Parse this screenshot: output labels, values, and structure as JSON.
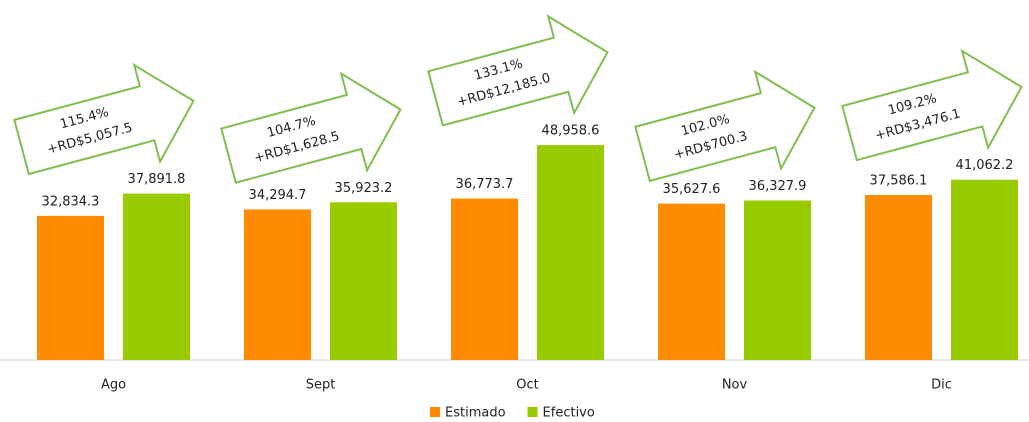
{
  "chart_data": {
    "type": "bar",
    "categories": [
      "Ago",
      "Sept",
      "Oct",
      "Nov",
      "Dic"
    ],
    "series": [
      {
        "name": "Estimado",
        "color": "#ff8c00",
        "values": [
          32834.3,
          34294.7,
          36773.7,
          35627.6,
          37586.1
        ],
        "value_labels": [
          "32,834.3",
          "34,294.7",
          "36,773.7",
          "35,627.6",
          "37,586.1"
        ]
      },
      {
        "name": "Efectivo",
        "color": "#99cc00",
        "values": [
          37891.8,
          35923.2,
          48958.6,
          36327.9,
          41062.2
        ],
        "value_labels": [
          "37,891.8",
          "35,923.2",
          "48,958.6",
          "36,327.9",
          "41,062.2"
        ]
      }
    ],
    "annotations": [
      {
        "percent": "115.4%",
        "amount": "+RD$5,057.5"
      },
      {
        "percent": "104.7%",
        "amount": "+RD$1,628.5"
      },
      {
        "percent": "133.1%",
        "amount": "+RD$12,185.0"
      },
      {
        "percent": "102.0%",
        "amount": "+RD$700.3"
      },
      {
        "percent": "109.2%",
        "amount": "+RD$3,476.1"
      }
    ],
    "ylim": [
      0,
      82000
    ],
    "legend": "bottom"
  }
}
